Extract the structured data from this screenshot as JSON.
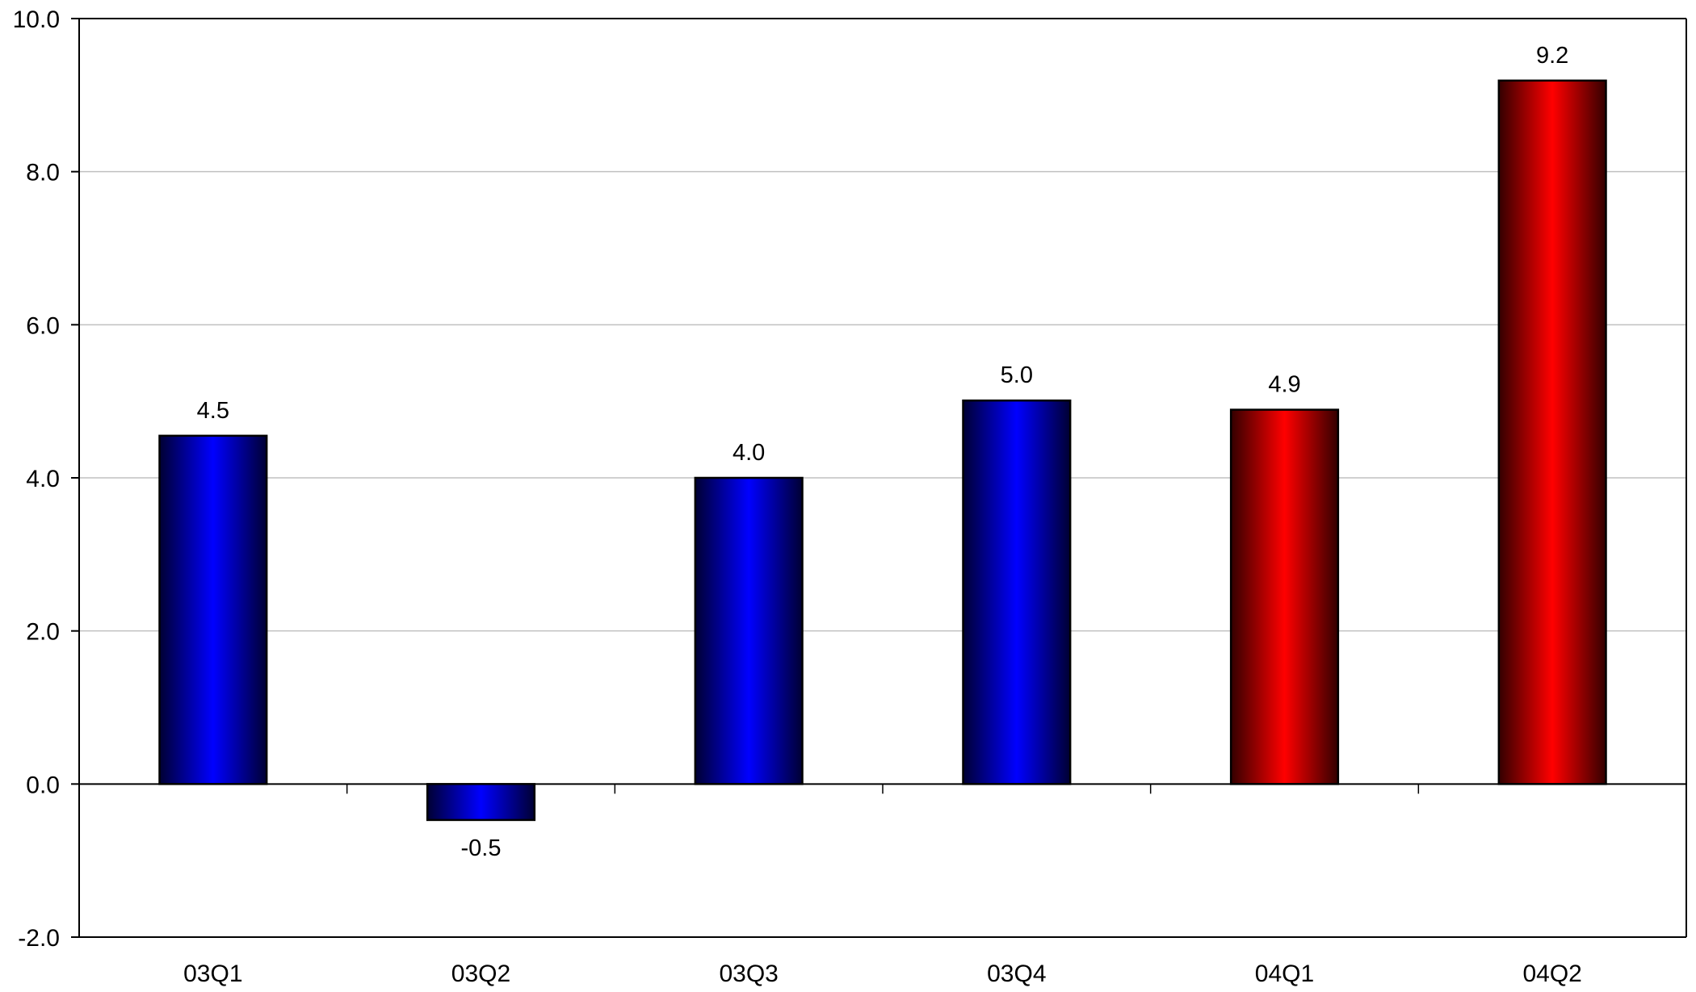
{
  "chart_data": {
    "type": "bar",
    "title": "",
    "xlabel": "",
    "ylabel": "",
    "categories": [
      "03Q1",
      "03Q2",
      "03Q3",
      "03Q4",
      "04Q1",
      "04Q2"
    ],
    "values": [
      4.55,
      -0.47,
      4.0,
      5.01,
      4.89,
      9.19
    ],
    "value_labels": [
      "4.5",
      "-0.5",
      "4.0",
      "5.0",
      "4.9",
      "9.2"
    ],
    "bar_colors": [
      "#0000ff",
      "#0000ff",
      "#0000ff",
      "#0000ff",
      "#ff0000",
      "#ff0000"
    ],
    "bar_dark_colors": [
      "#000033",
      "#000033",
      "#000033",
      "#000033",
      "#330000",
      "#330000"
    ],
    "ylim": [
      -2.0,
      10.0
    ],
    "yticks": [
      10.0,
      8.0,
      6.0,
      4.0,
      2.0,
      0.0,
      -2.0
    ],
    "ytick_labels": [
      "10.0",
      "8.0",
      "6.0",
      "4.0",
      "2.0",
      "0.0",
      "-2.0"
    ],
    "grid": true,
    "legend": "none"
  }
}
